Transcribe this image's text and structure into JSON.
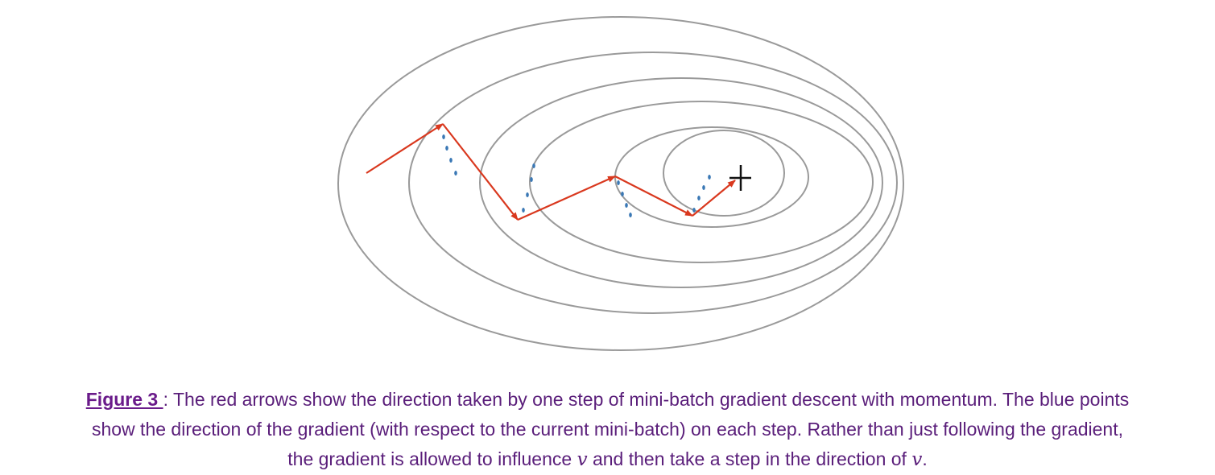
{
  "figure": {
    "caption": {
      "label": "Figure 3 ",
      "separator": ": ",
      "line1": "The red arrows show the direction taken by one step of mini-batch gradient descent with momentum. The blue points",
      "line2": "show the direction of the gradient (with respect to the current mini-batch) on each step. Rather than just following the gradient,",
      "line3_a": "the gradient is allowed to influence ",
      "line3_var1": "v",
      "line3_b": " and then take a step in the direction of ",
      "line3_var2": "v",
      "line3_c": "."
    },
    "colors": {
      "contour": "#9a9a9a",
      "step_arrow": "#d9381e",
      "gradient_points": "#3a78b5",
      "optimum_marker": "#111111",
      "caption_text": "#5a1e7a"
    },
    "icons": {
      "optimum": "plus-marker-icon"
    }
  }
}
